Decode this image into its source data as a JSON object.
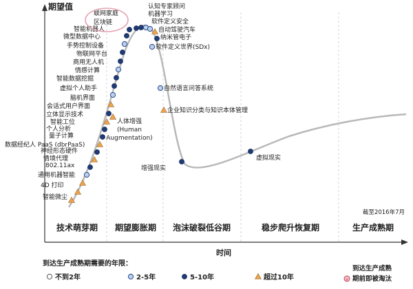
{
  "chart_data": {
    "type": "line",
    "ylabel": "期望值",
    "xlabel": "时间",
    "date_note": "截至2016年7月",
    "phases": [
      "技术萌芽期",
      "期望膨胀期",
      "泡沫破裂低谷期",
      "稳步爬升恢复期",
      "生产成熟期"
    ],
    "highlighted_note": [
      "联网家庭",
      "区块链"
    ],
    "legend_title": "到达生产成熟期需要的年限：",
    "legend": [
      {
        "key": "lt2",
        "label": "不到2年"
      },
      {
        "key": "y2_5",
        "label": "2-5年"
      },
      {
        "key": "y5_10",
        "label": "5-10年"
      },
      {
        "key": "gt10",
        "label": "超过10年"
      }
    ],
    "obsolete_label": [
      "到达生产成熟",
      "期前即被淘汰"
    ],
    "technologies": [
      {
        "name": "智能微尘",
        "marker": "gt10",
        "side": "left"
      },
      {
        "name": "4D 打印",
        "marker": "gt10",
        "side": "left"
      },
      {
        "name": "通用机器智能",
        "marker": "gt10",
        "side": "left"
      },
      {
        "name": "802.11ax",
        "marker": "y2_5",
        "side": "left"
      },
      {
        "name": "情境代理",
        "marker": "y5_10",
        "side": "left"
      },
      {
        "name": "神经形态硬件",
        "marker": "gt10",
        "side": "left"
      },
      {
        "name": "数据经纪人 PaaS (dbrPaaS)",
        "marker": "y5_10",
        "side": "left"
      },
      {
        "name": "量子计算",
        "marker": "gt10",
        "side": "left"
      },
      {
        "name": "个人分析",
        "marker": "y5_10",
        "side": "left"
      },
      {
        "name": "智能工位",
        "marker": "y5_10",
        "side": "left"
      },
      {
        "name": "立体显示技术",
        "marker": "gt10",
        "side": "left"
      },
      {
        "name": "会话式用户界面",
        "marker": "y5_10",
        "side": "left"
      },
      {
        "name": "脑机界面",
        "marker": "gt10",
        "side": "left"
      },
      {
        "name": "虚拟个人助手",
        "marker": "y2_5",
        "side": "left"
      },
      {
        "name": "智能数据挖掘",
        "marker": "y5_10",
        "side": "left"
      },
      {
        "name": "情感计算",
        "marker": "y5_10",
        "side": "left"
      },
      {
        "name": "商用无人机",
        "marker": "y2_5",
        "side": "left"
      },
      {
        "name": "物联网平台",
        "marker": "y5_10",
        "side": "left"
      },
      {
        "name": "手势控制设备",
        "marker": "y5_10",
        "side": "left"
      },
      {
        "name": "微型数据中心",
        "marker": "y2_5",
        "side": "left"
      },
      {
        "name": "智能机器人",
        "marker": "y5_10",
        "side": "left"
      },
      {
        "name": "区块链",
        "marker": "y5_10",
        "side": "left"
      },
      {
        "name": "联网家庭",
        "marker": "y5_10",
        "side": "left"
      },
      {
        "name": "人体增强 (Human Augmentation)",
        "marker": "gt10",
        "side": "right"
      },
      {
        "name": "认知专家顾问",
        "marker": "y5_10",
        "side": "right"
      },
      {
        "name": "机器学习",
        "marker": "y2_5",
        "side": "right"
      },
      {
        "name": "软件定义安全",
        "marker": "y2_5",
        "side": "right"
      },
      {
        "name": "自动驾驶汽车",
        "marker": "gt10",
        "side": "right"
      },
      {
        "name": "纳米管电子",
        "marker": "y5_10",
        "side": "right"
      },
      {
        "name": "软件定义世界(SDx)",
        "marker": "y2_5",
        "side": "right"
      },
      {
        "name": "自然语言问答系统",
        "marker": "y2_5",
        "side": "right"
      },
      {
        "name": "企业知识分类与知识本体管理",
        "marker": "gt10",
        "side": "right"
      },
      {
        "name": "增强现实",
        "marker": "y5_10",
        "side": "right"
      },
      {
        "name": "虚拟现实",
        "marker": "y5_10",
        "side": "right"
      }
    ]
  }
}
